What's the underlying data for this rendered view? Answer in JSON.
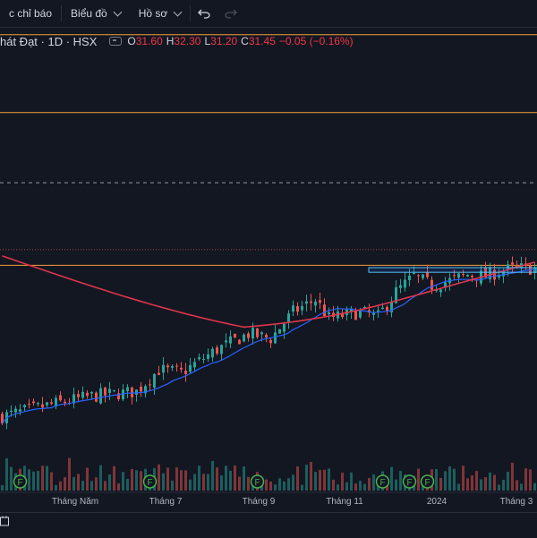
{
  "toolbar": {
    "indicators_label": "c chỉ báo",
    "chart_label": "Biểu đồ",
    "profile_label": "Hồ sơ"
  },
  "legend": {
    "symbol": "hát Đạt · 1D · HSX",
    "open_label": "O",
    "open": "31.60",
    "high_label": "H",
    "high": "32.30",
    "low_label": "L",
    "low": "31.20",
    "close_label": "C",
    "close": "31.45",
    "change": "−0.05 (−0.16%)"
  },
  "colors": {
    "background": "#131722",
    "up": "#26a69a",
    "down": "#ef5350",
    "ma_short": "#2962ff",
    "ma_long": "#e0344b",
    "hline": "#f59d3a",
    "text": "#d1d4dc"
  },
  "chart_data": {
    "type": "candlestick",
    "x_tick_labels": [
      "Tháng Năm",
      "Tháng 7",
      "Tháng 9",
      "Tháng 11",
      "2024",
      "Tháng 3"
    ],
    "earnings_marker_label": "F",
    "earnings_markers": [
      4,
      33,
      57,
      85,
      91,
      95
    ],
    "price_waypoints": [
      [
        0,
        21.5
      ],
      [
        10,
        22.2
      ],
      [
        20,
        22.8
      ],
      [
        30,
        23.1
      ],
      [
        35,
        24.5
      ],
      [
        40,
        24.3
      ],
      [
        48,
        25.8
      ],
      [
        55,
        26.8
      ],
      [
        60,
        26.5
      ],
      [
        65,
        28.2
      ],
      [
        70,
        29.0
      ],
      [
        73,
        27.8
      ],
      [
        80,
        28.2
      ],
      [
        84,
        27.9
      ],
      [
        88,
        29.5
      ],
      [
        92,
        30.5
      ],
      [
        96,
        29.9
      ],
      [
        100,
        30.2
      ],
      [
        104,
        30.6
      ],
      [
        108,
        30.5
      ],
      [
        112,
        30.9
      ],
      [
        116,
        31.0
      ],
      [
        120,
        31.0
      ]
    ],
    "horizontal_levels": [
      {
        "price": 46.0,
        "style": "solid"
      },
      {
        "price": 41.0,
        "style": "solid"
      },
      {
        "price": 36.5,
        "style": "dashed"
      },
      {
        "price": 31.2,
        "style": "solid"
      }
    ],
    "y_range": [
      19.5,
      46.5
    ]
  }
}
